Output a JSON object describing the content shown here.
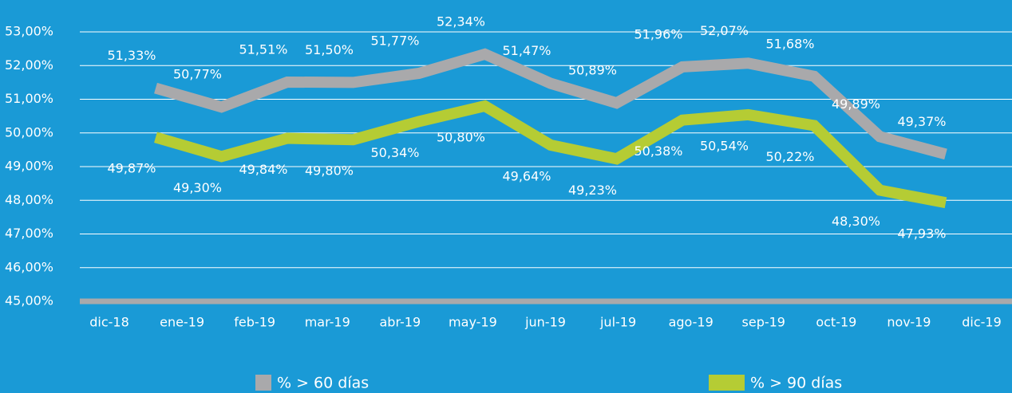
{
  "chart_data": {
    "type": "line",
    "categories": [
      "dic-18",
      "ene-19",
      "feb-19",
      "mar-19",
      "abr-19",
      "may-19",
      "jun-19",
      "jul-19",
      "ago-19",
      "sep-19",
      "oct-19",
      "nov-19",
      "dic-19"
    ],
    "series": [
      {
        "name": "% > 60 días",
        "color": "#a9a9ab",
        "values": [
          51.33,
          50.77,
          51.51,
          51.5,
          51.77,
          52.34,
          51.47,
          50.89,
          51.96,
          52.07,
          51.68,
          49.89,
          49.37
        ],
        "value_labels": [
          "51,33%",
          "50,77%",
          "51,51%",
          "51,50%",
          "51,77%",
          "52,34%",
          "51,47%",
          "50,89%",
          "51,96%",
          "52,07%",
          "51,68%",
          "49,89%",
          "49,37%"
        ]
      },
      {
        "name": "% > 90 días",
        "color": "#b5cc34",
        "values": [
          49.87,
          49.3,
          49.84,
          49.8,
          50.34,
          50.8,
          49.64,
          49.23,
          50.38,
          50.54,
          50.22,
          48.3,
          47.93
        ],
        "value_labels": [
          "49,87%",
          "49,30%",
          "49,84%",
          "49,80%",
          "50,34%",
          "50,80%",
          "49,64%",
          "49,23%",
          "50,38%",
          "50,54%",
          "50,22%",
          "48,30%",
          "47,93%"
        ]
      }
    ],
    "ylim": [
      45,
      53
    ],
    "yticks": [
      {
        "value": 45,
        "label": "45,00%"
      },
      {
        "value": 46,
        "label": "46,00%"
      },
      {
        "value": 47,
        "label": "47,00%"
      },
      {
        "value": 48,
        "label": "48,00%"
      },
      {
        "value": 49,
        "label": "49,00%"
      },
      {
        "value": 50,
        "label": "50,00%"
      },
      {
        "value": 51,
        "label": "51,00%"
      },
      {
        "value": 52,
        "label": "52,00%"
      },
      {
        "value": 53,
        "label": "53,00%"
      }
    ],
    "grid": true,
    "legend": "bottom"
  }
}
